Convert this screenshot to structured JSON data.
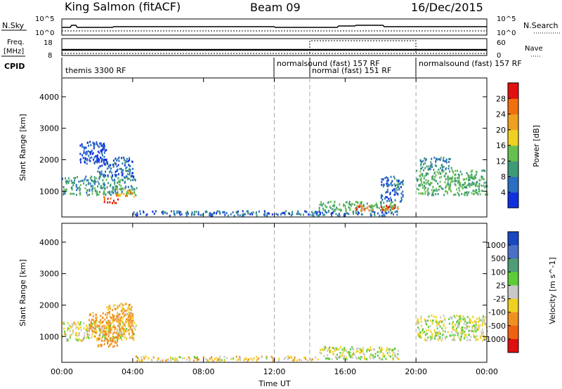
{
  "header": {
    "station": "King Salmon (fitACF)",
    "beam": "Beam 09",
    "date": "16/Dec/2015"
  },
  "noise_panel": {
    "left_label": "N.Sky",
    "right_label": "N.Search",
    "top_tick": "10^5",
    "bottom_tick": "10^0"
  },
  "freq_panel": {
    "left_label_1": "Freq.",
    "left_label_2": "[MHz]",
    "right_label": "Nave",
    "left_ticks": [
      "18",
      "8"
    ],
    "right_ticks": [
      "60",
      "0"
    ]
  },
  "cpid_panel": {
    "label": "CPID",
    "programs": [
      {
        "name": "themis 3300 RF",
        "start_hour": 0
      },
      {
        "name": "normalsound (fast) 157 RF",
        "start_hour": 12
      },
      {
        "name": "normal (fast) 151 RF",
        "start_hour": 14
      },
      {
        "name": "normalsound (fast) 157 RF",
        "start_hour": 20
      }
    ]
  },
  "chart_data": [
    {
      "type": "heatmap",
      "title": "",
      "xlabel": "",
      "ylabel": "Slant Range [km]",
      "xlim": [
        0,
        24
      ],
      "ylim": [
        180,
        4600
      ],
      "yticks": [
        1000,
        2000,
        3000,
        4000
      ],
      "colorbar": {
        "label": "Power [dB]",
        "range": [
          0,
          32
        ],
        "ticks": [
          "4",
          "8",
          "12",
          "16",
          "20",
          "24",
          "28"
        ],
        "colors": [
          "#1030e0",
          "#2a6fc0",
          "#3f9a78",
          "#66c050",
          "#f0d020",
          "#f0a020",
          "#f07010",
          "#e01010"
        ]
      },
      "regions": [
        {
          "x": [
            0.0,
            4.2
          ],
          "y": [
            900,
            1500
          ],
          "value": 10
        },
        {
          "x": [
            2.0,
            4.0
          ],
          "y": [
            1500,
            2100
          ],
          "value": 6
        },
        {
          "x": [
            1.0,
            2.5
          ],
          "y": [
            1900,
            2600
          ],
          "value": 4
        },
        {
          "x": [
            2.3,
            3.2
          ],
          "y": [
            650,
            850
          ],
          "value": 29
        },
        {
          "x": [
            3.0,
            4.1
          ],
          "y": [
            850,
            1100
          ],
          "value": 21
        },
        {
          "x": [
            4.0,
            19.0
          ],
          "y": [
            250,
            400
          ],
          "value": 6
        },
        {
          "x": [
            14.5,
            19.0
          ],
          "y": [
            400,
            700
          ],
          "value": 12
        },
        {
          "x": [
            16.5,
            17.5
          ],
          "y": [
            400,
            600
          ],
          "value": 25
        },
        {
          "x": [
            18.0,
            19.0
          ],
          "y": [
            400,
            600
          ],
          "value": 27
        },
        {
          "x": [
            18.0,
            19.3
          ],
          "y": [
            700,
            1500
          ],
          "value": 6
        },
        {
          "x": [
            20.0,
            24.0
          ],
          "y": [
            900,
            1700
          ],
          "value": 12
        },
        {
          "x": [
            20.2,
            22.0
          ],
          "y": [
            1700,
            2100
          ],
          "value": 8
        }
      ]
    },
    {
      "type": "heatmap",
      "title": "",
      "xlabel": "Time UT",
      "ylabel": "Slant Range [km]",
      "xlim": [
        0,
        24
      ],
      "ylim": [
        180,
        4600
      ],
      "yticks": [
        1000,
        2000,
        3000,
        4000
      ],
      "xticks": [
        "00:00",
        "04:00",
        "08:00",
        "12:00",
        "16:00",
        "20:00",
        "00:00"
      ],
      "colorbar": {
        "label": "Velocity [m s^-1]",
        "ticks": [
          "1000",
          "500",
          "100",
          "25",
          "-25",
          "-100",
          "-500",
          "-1000"
        ],
        "colors": [
          "#1848c0",
          "#4a70c8",
          "#4e9c78",
          "#5ccc38",
          "#c8c8c8",
          "#f0d020",
          "#f09020",
          "#f06010",
          "#e01010"
        ]
      },
      "regions": [
        {
          "x": [
            0.0,
            4.2
          ],
          "y": [
            900,
            1500
          ],
          "value": -25
        },
        {
          "x": [
            1.5,
            4.0
          ],
          "y": [
            1100,
            1800
          ],
          "value": -150
        },
        {
          "x": [
            2.0,
            3.2
          ],
          "y": [
            700,
            1100
          ],
          "value": -300
        },
        {
          "x": [
            2.5,
            4.0
          ],
          "y": [
            1500,
            2100
          ],
          "value": -100
        },
        {
          "x": [
            4.0,
            14.5
          ],
          "y": [
            250,
            400
          ],
          "value": -60
        },
        {
          "x": [
            14.5,
            19.0
          ],
          "y": [
            300,
            700
          ],
          "value": 0
        },
        {
          "x": [
            20.0,
            24.0
          ],
          "y": [
            900,
            1700
          ],
          "value": 0
        }
      ]
    }
  ]
}
